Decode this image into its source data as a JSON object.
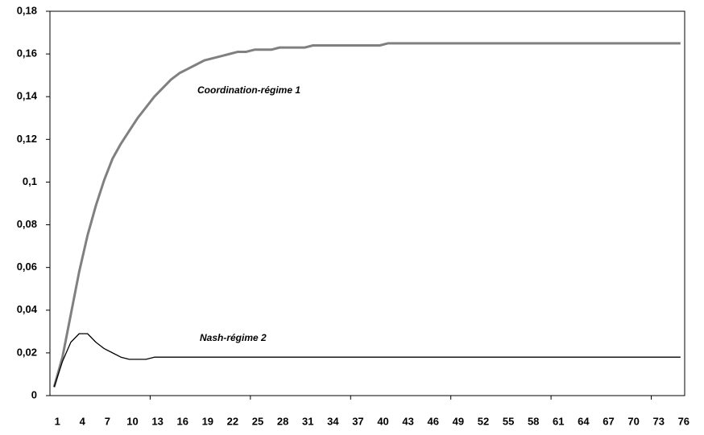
{
  "chart_data": {
    "type": "line",
    "categories": [
      "1",
      null,
      null,
      "4",
      null,
      null,
      "7",
      null,
      null,
      "10",
      null,
      null,
      "13",
      null,
      null,
      "16",
      null,
      null,
      "19",
      null,
      null,
      "22",
      null,
      null,
      "25",
      null,
      null,
      "28",
      null,
      null,
      "31",
      null,
      null,
      "34",
      null,
      null,
      "37",
      null,
      null,
      "40",
      null,
      null,
      "43",
      null,
      null,
      "46",
      null,
      null,
      "49",
      null,
      null,
      "52",
      null,
      null,
      "55",
      null,
      null,
      "58",
      null,
      null,
      "61",
      null,
      null,
      "64",
      null,
      null,
      "67",
      null,
      null,
      "70",
      null,
      null,
      "73",
      null,
      null,
      "76"
    ],
    "series": [
      {
        "name": "Coordination-régime 1",
        "color": "#808080",
        "values": [
          0.004,
          0.018,
          0.038,
          0.058,
          0.075,
          0.089,
          0.101,
          0.111,
          0.118,
          0.124,
          0.13,
          0.135,
          0.14,
          0.144,
          0.148,
          0.151,
          0.153,
          0.155,
          0.157,
          0.158,
          0.159,
          0.16,
          0.161,
          0.161,
          0.162,
          0.162,
          0.162,
          0.163,
          0.163,
          0.163,
          0.163,
          0.164,
          0.164,
          0.164,
          0.164,
          0.164,
          0.164,
          0.164,
          0.164,
          0.164,
          0.165,
          0.165,
          0.165,
          0.165,
          0.165,
          0.165,
          0.165,
          0.165,
          0.165,
          0.165,
          0.165,
          0.165,
          0.165,
          0.165,
          0.165,
          0.165,
          0.165,
          0.165,
          0.165,
          0.165,
          0.165,
          0.165,
          0.165,
          0.165,
          0.165,
          0.165,
          0.165,
          0.165,
          0.165,
          0.165,
          0.165,
          0.165,
          0.165,
          0.165,
          0.165,
          0.165
        ]
      },
      {
        "name": "Nash-régime 2",
        "color": "#000000",
        "values": [
          0.004,
          0.016,
          0.025,
          0.029,
          0.029,
          0.025,
          0.022,
          0.02,
          0.018,
          0.017,
          0.017,
          0.017,
          0.018,
          0.018,
          0.018,
          0.018,
          0.018,
          0.018,
          0.018,
          0.018,
          0.018,
          0.018,
          0.018,
          0.018,
          0.018,
          0.018,
          0.018,
          0.018,
          0.018,
          0.018,
          0.018,
          0.018,
          0.018,
          0.018,
          0.018,
          0.018,
          0.018,
          0.018,
          0.018,
          0.018,
          0.018,
          0.018,
          0.018,
          0.018,
          0.018,
          0.018,
          0.018,
          0.018,
          0.018,
          0.018,
          0.018,
          0.018,
          0.018,
          0.018,
          0.018,
          0.018,
          0.018,
          0.018,
          0.018,
          0.018,
          0.018,
          0.018,
          0.018,
          0.018,
          0.018,
          0.018,
          0.018,
          0.018,
          0.018,
          0.018,
          0.018,
          0.018,
          0.018,
          0.018,
          0.018,
          0.018
        ]
      }
    ],
    "ylim": [
      0,
      0.18
    ],
    "yticks": [
      0,
      {
        "value": 0.02,
        "label": "0,02"
      },
      {
        "value": 0.04,
        "label": "0,04"
      },
      {
        "value": 0.06,
        "label": "0,06"
      },
      {
        "value": 0.08,
        "label": "0,08"
      },
      {
        "value": 0.1,
        "label": "0,1"
      },
      {
        "value": 0.12,
        "label": "0,12"
      },
      {
        "value": 0.14,
        "label": "0,14"
      },
      {
        "value": 0.16,
        "label": "0,16"
      },
      {
        "value": 0.18,
        "label": "0,18"
      }
    ],
    "grid": false
  }
}
